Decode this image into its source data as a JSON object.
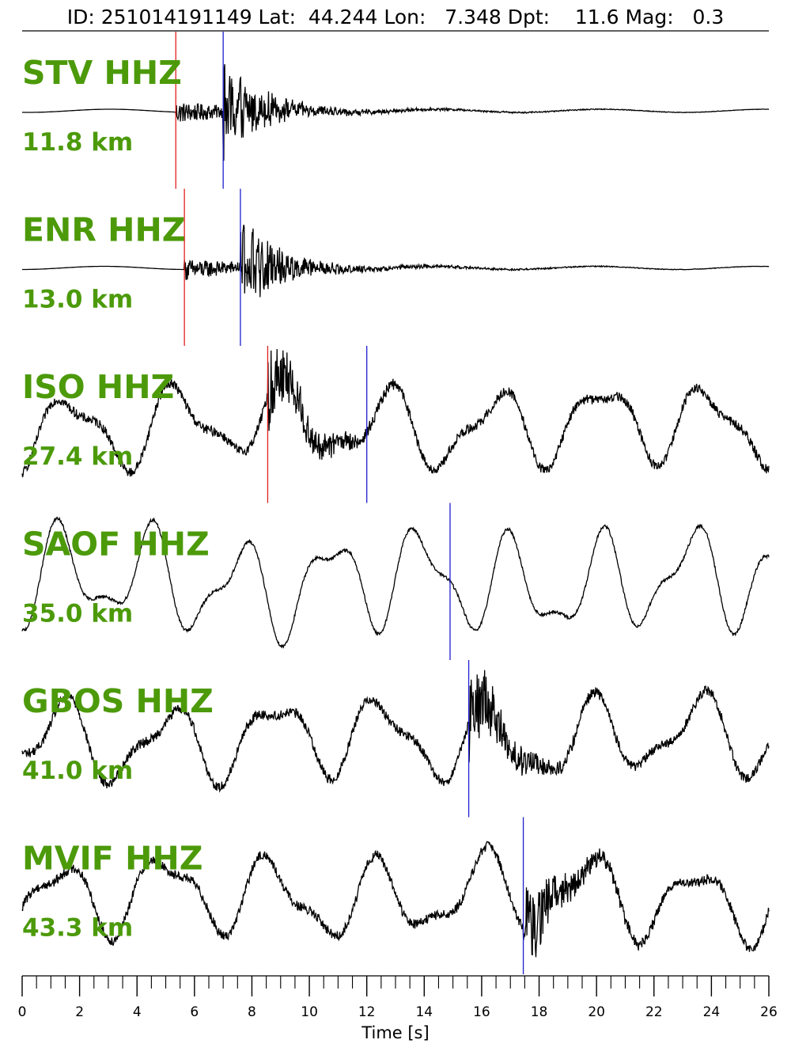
{
  "header": {
    "text": "ID: 251014191149 Lat:  44.244 Lon:   7.348 Dpt:    11.6 Mag:   0.3"
  },
  "colors": {
    "label": "#4c9a0a",
    "p_pick": "#e02020",
    "s_pick": "#1f1fd0",
    "trace": "#000000",
    "axis": "#000000"
  },
  "chart_data": {
    "type": "line",
    "title": "ID: 251014191149 Lat:  44.244 Lon:   7.348 Dpt:    11.6 Mag:   0.3",
    "xlabel": "Time [s]",
    "xlim": [
      0,
      26
    ],
    "x_ticks": [
      0,
      2,
      4,
      6,
      8,
      10,
      12,
      14,
      16,
      18,
      20,
      22,
      24,
      26
    ],
    "x_tick_labels": [
      "0",
      "2",
      "4",
      "6",
      "8",
      "10",
      "12",
      "14",
      "16",
      "18",
      "20",
      "22",
      "24",
      "26"
    ],
    "minor_tick_step": 0.5,
    "series": [
      {
        "station": "STV HHZ",
        "distance": "11.8 km",
        "p_pick": 5.35,
        "s_pick": 7.0,
        "style": "local"
      },
      {
        "station": "ENR HHZ",
        "distance": "13.0 km",
        "p_pick": 5.65,
        "s_pick": 7.6,
        "style": "local"
      },
      {
        "station": "ISO HHZ",
        "distance": "27.4 km",
        "p_pick": 8.55,
        "s_pick": 12.0,
        "style": "noisy"
      },
      {
        "station": "SAOF HHZ",
        "distance": "35.0 km",
        "p_pick": null,
        "s_pick": 14.9,
        "style": "smooth"
      },
      {
        "station": "GBOS HHZ",
        "distance": "41.0 km",
        "p_pick": null,
        "s_pick": 15.55,
        "style": "noisy"
      },
      {
        "station": "MVIF HHZ",
        "distance": "43.3 km",
        "p_pick": null,
        "s_pick": 17.45,
        "style": "noisy"
      }
    ]
  }
}
